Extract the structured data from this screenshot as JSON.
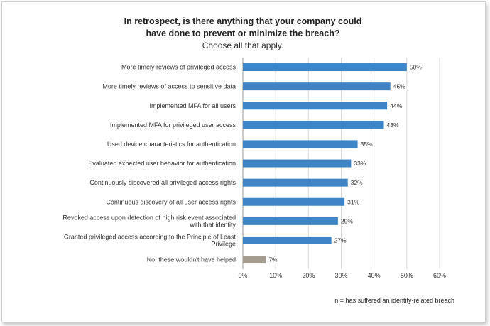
{
  "chart_data": {
    "type": "bar",
    "orientation": "horizontal",
    "title_lines": [
      "In retrospect, is there anything that your company could",
      "have done to prevent or minimize the breach?"
    ],
    "subtitle": "Choose all that apply.",
    "categories": [
      [
        "More timely reviews of privileged access"
      ],
      [
        "More timely reviews of access to sensitive data"
      ],
      [
        "Implemented MFA for all users"
      ],
      [
        "Implemented MFA for privileged user access"
      ],
      [
        "Used device characteristics for authentication"
      ],
      [
        "Evaluated expected user behavior for authentication"
      ],
      [
        "Continuously discovered all privileged access rights"
      ],
      [
        "Continuous discovery of all user access rights"
      ],
      [
        "Revoked access upon detection of high risk event associated",
        "with that identity"
      ],
      [
        "Granted privileged access according to the Principle of Least",
        "Privilege"
      ],
      [
        "No, these wouldn't have helped"
      ]
    ],
    "values": [
      50,
      45,
      44,
      43,
      35,
      33,
      32,
      31,
      29,
      27,
      7
    ],
    "value_labels": [
      "50%",
      "45%",
      "44%",
      "43%",
      "35%",
      "33%",
      "32%",
      "31%",
      "29%",
      "27%",
      "7%"
    ],
    "bar_colors": [
      "#3d85c6",
      "#3d85c6",
      "#3d85c6",
      "#3d85c6",
      "#3d85c6",
      "#3d85c6",
      "#3d85c6",
      "#3d85c6",
      "#3d85c6",
      "#3d85c6",
      "#a39c8f"
    ],
    "xlim": [
      0,
      60
    ],
    "xticks": [
      0,
      10,
      20,
      30,
      40,
      50,
      60
    ],
    "xtick_labels": [
      "0%",
      "10%",
      "20%",
      "30%",
      "40%",
      "50%",
      "60%"
    ],
    "grid": true,
    "footnote": "n = has suffered an identity-related breach"
  }
}
